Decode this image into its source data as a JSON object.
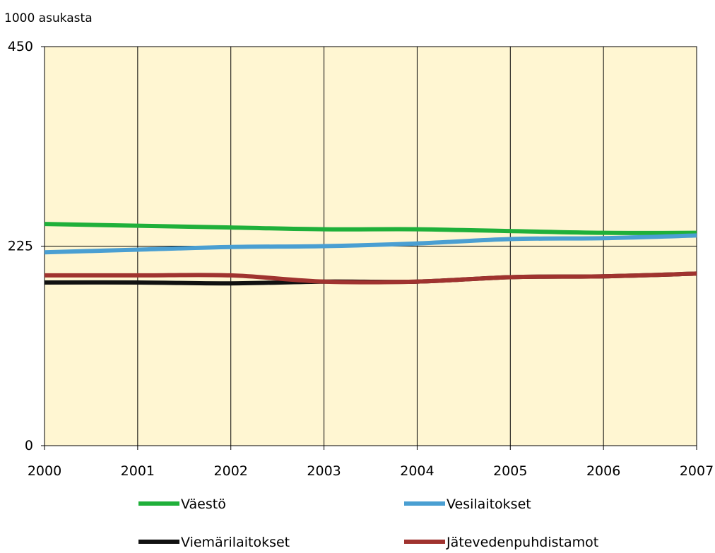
{
  "chart_data": {
    "type": "line",
    "unit_label": "1000 asukasta",
    "x": [
      "2000",
      "2001",
      "2002",
      "2003",
      "2004",
      "2005",
      "2006",
      "2007"
    ],
    "ylim": [
      0,
      450
    ],
    "yticks": [
      "0",
      "225",
      "450"
    ],
    "grid": {
      "vertical": true,
      "horizontal": true
    },
    "plot_background": "#FFF6D2",
    "legend_position": "bottom",
    "series": [
      {
        "name": "Väestö",
        "color": "#1FB03A",
        "values": [
          250,
          248,
          246,
          244,
          244,
          242,
          240,
          240
        ]
      },
      {
        "name": "Vesilaitokset",
        "color": "#4A9FD2",
        "values": [
          218,
          221,
          224,
          225,
          228,
          233,
          234,
          237
        ]
      },
      {
        "name": "Viemärilaitokset",
        "color": "#111111",
        "values": [
          184,
          184,
          183,
          185,
          185,
          190,
          191,
          194
        ]
      },
      {
        "name": "Jätevedenpuhdistamot",
        "color": "#A0332F",
        "values": [
          192,
          192,
          192,
          185,
          185,
          190,
          191,
          194
        ]
      }
    ]
  }
}
